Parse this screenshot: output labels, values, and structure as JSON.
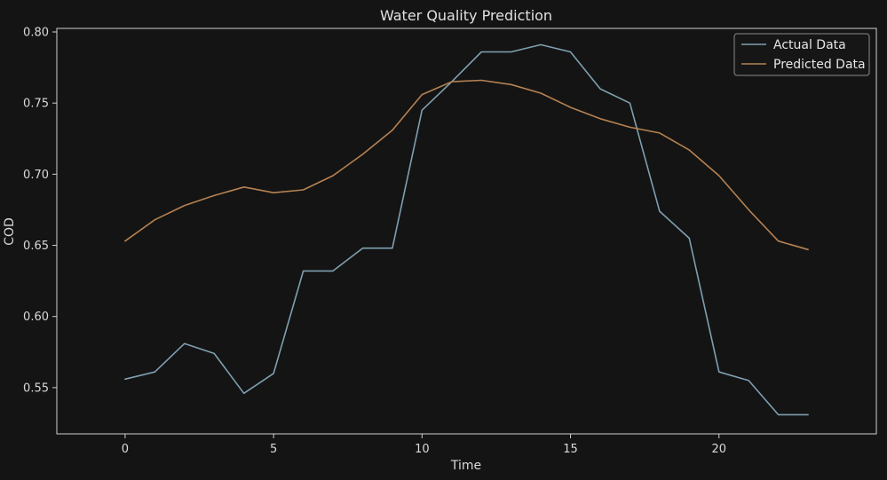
{
  "chart_data": {
    "type": "line",
    "title": "Water Quality Prediction",
    "xlabel": "Time",
    "ylabel": "COD",
    "xlim": [
      -2.3,
      25.3
    ],
    "ylim": [
      0.5175,
      0.8025
    ],
    "xticks": [
      0,
      5,
      10,
      15,
      20
    ],
    "xtick_labels": [
      "0",
      "5",
      "10",
      "15",
      "20"
    ],
    "yticks": [
      0.55,
      0.6,
      0.65,
      0.7,
      0.75,
      0.8
    ],
    "ytick_labels": [
      "0.55",
      "0.60",
      "0.65",
      "0.70",
      "0.75",
      "0.80"
    ],
    "grid": false,
    "legend_position": "top-right",
    "x": [
      0,
      1,
      2,
      3,
      4,
      5,
      6,
      7,
      8,
      9,
      10,
      11,
      12,
      13,
      14,
      15,
      16,
      17,
      18,
      19,
      20,
      21,
      22,
      23
    ],
    "series": [
      {
        "name": "Actual Data",
        "color": "#7f9fb0",
        "values": [
          0.556,
          0.561,
          0.581,
          0.574,
          0.546,
          0.56,
          0.632,
          0.632,
          0.648,
          0.648,
          0.745,
          0.765,
          0.786,
          0.786,
          0.791,
          0.786,
          0.76,
          0.75,
          0.674,
          0.655,
          0.561,
          0.555,
          0.531,
          0.531
        ]
      },
      {
        "name": "Predicted Data",
        "color": "#b58252",
        "values": [
          0.653,
          0.668,
          0.678,
          0.685,
          0.691,
          0.687,
          0.689,
          0.699,
          0.714,
          0.731,
          0.756,
          0.765,
          0.766,
          0.763,
          0.757,
          0.747,
          0.739,
          0.733,
          0.729,
          0.717,
          0.699,
          0.675,
          0.653,
          0.647
        ]
      }
    ]
  }
}
